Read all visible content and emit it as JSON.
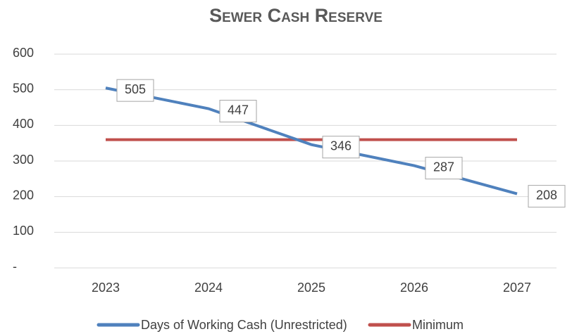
{
  "chart_data": {
    "type": "line",
    "title": "Sewer Cash Reserve",
    "categories": [
      "2023",
      "2024",
      "2025",
      "2026",
      "2027"
    ],
    "series": [
      {
        "name": "Days of Working Cash (Unrestricted)",
        "color": "#4f81bd",
        "values": [
          505,
          447,
          346,
          287,
          208
        ]
      },
      {
        "name": "Minimum",
        "color": "#c0504d",
        "values": [
          360,
          360,
          360,
          360,
          360
        ]
      }
    ],
    "data_labels_series": 0,
    "ylim": [
      0,
      600
    ],
    "yticks": [
      {
        "value": 0,
        "label": "-"
      },
      100,
      200,
      300,
      400,
      500,
      600
    ],
    "grid": true
  }
}
